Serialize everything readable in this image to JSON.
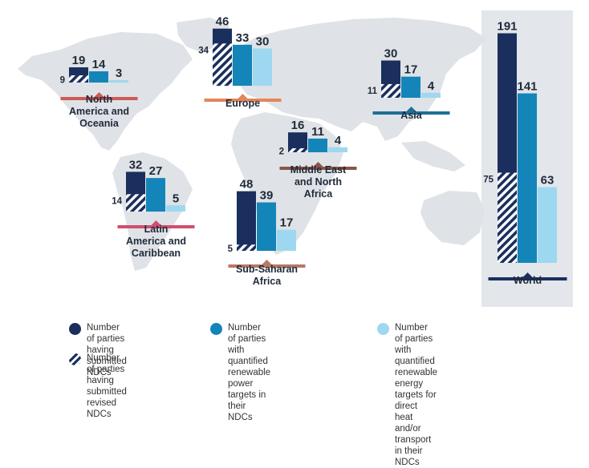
{
  "chart_data": {
    "type": "bar",
    "colors": {
      "submitted": "#1b2f5e",
      "renewable_power": "#1485b8",
      "direct_heat_transport": "#9ed8f0",
      "world_panel": "#e3e6ea",
      "map": "#dfe2e6"
    },
    "series_keys": [
      "submitted",
      "revised",
      "renewable_power",
      "direct_heat_transport"
    ],
    "regions": [
      {
        "key": "north-america",
        "label": "North\nAmerica and\nOceania",
        "accent": "#cc5a56",
        "submitted": 19,
        "revised": 9,
        "renewable_power": 14,
        "direct_heat_transport": 3
      },
      {
        "key": "europe",
        "label": "Europe",
        "accent": "#e0875a",
        "submitted": 46,
        "revised": 34,
        "renewable_power": 33,
        "direct_heat_transport": 30
      },
      {
        "key": "asia",
        "label": "Asia",
        "accent": "#1e6f96",
        "submitted": 30,
        "revised": 11,
        "renewable_power": 17,
        "direct_heat_transport": 4
      },
      {
        "key": "middle-east",
        "label": "Middle East\nand North\nAfrica",
        "accent": "#8a5548",
        "submitted": 16,
        "revised": 2,
        "renewable_power": 11,
        "direct_heat_transport": 4
      },
      {
        "key": "latin-america",
        "label": "Latin\nAmerica and\nCaribbean",
        "accent": "#cf4f70",
        "submitted": 32,
        "revised": 14,
        "renewable_power": 27,
        "direct_heat_transport": 5
      },
      {
        "key": "sub-saharan",
        "label": "Sub-Saharan\nAfrica",
        "accent": "#b77865",
        "submitted": 48,
        "revised": 5,
        "renewable_power": 39,
        "direct_heat_transport": 17
      },
      {
        "key": "world",
        "label": "World",
        "accent": "#1b2f5e",
        "submitted": 191,
        "revised": 75,
        "renewable_power": 141,
        "direct_heat_transport": 63
      }
    ],
    "legend": [
      {
        "key": "submitted",
        "label": "Number of parties\nhaving submitted NDCs"
      },
      {
        "key": "revised",
        "label": "Number of parties having\nsubmitted revised NDCs"
      },
      {
        "key": "renewable_power",
        "label": "Number of parties with\nquantified renewable power\ntargets in their NDCs"
      },
      {
        "key": "direct_heat_transport",
        "label": "Number of parties with quantified\nrenewable energy targets for direct\nheat and/or transport in their NDCs"
      }
    ]
  }
}
